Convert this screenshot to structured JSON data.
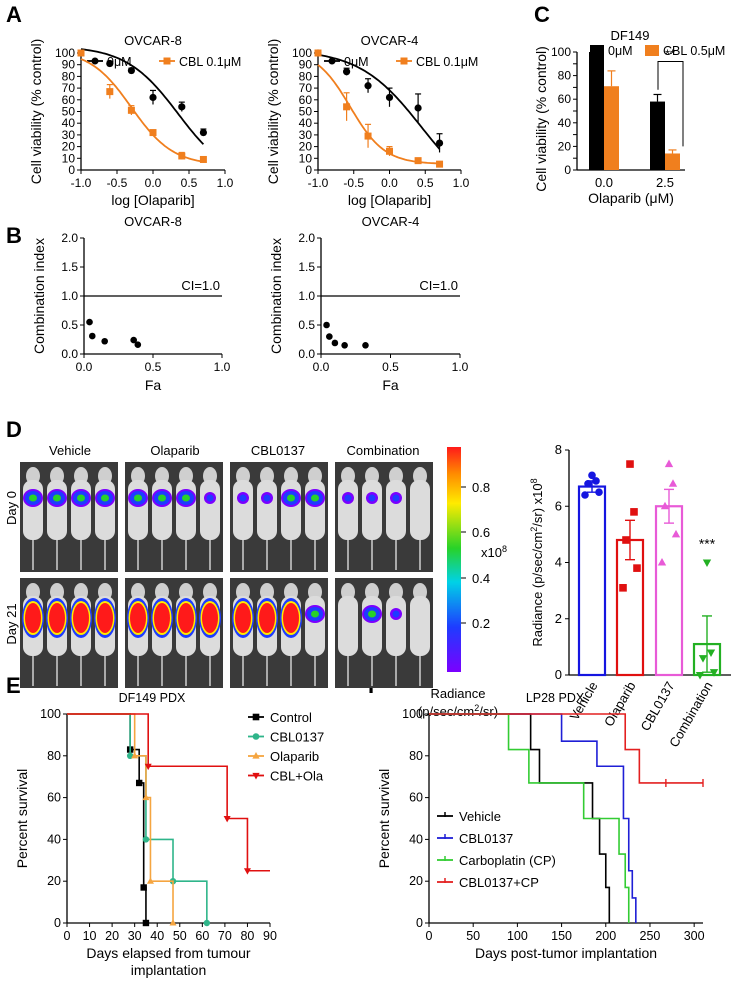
{
  "panel_letters": {
    "a": "A",
    "b": "B",
    "c": "C",
    "d": "D",
    "e": "E",
    "f": "F"
  },
  "colors": {
    "black": "#000000",
    "orange": "#f07f1e",
    "blue": "#1515e0",
    "red": "#e01010",
    "magenta": "#e85ad7",
    "green": "#23b023",
    "teal": "#2fb58a",
    "lightorange": "#f5a540",
    "f_green": "#33cc33",
    "f_blue": "#1f1fd6",
    "f_red": "#e32020"
  },
  "d_images": {
    "groups": [
      "Vehicle",
      "Olaparib",
      "CBL0137",
      "Combination"
    ],
    "rows": [
      "Day 0",
      "Day 21"
    ],
    "colorbar_ticks": [
      "0.8",
      "0.6",
      "0.4",
      "0.2"
    ],
    "colorbar_multiplier": "x10",
    "colorbar_exp": "8",
    "radiance_label": "Radiance",
    "radiance_units_pre": "(p/sec/cm",
    "radiance_units_sup": "2",
    "radiance_units_post": "/sr)"
  },
  "chart_data": [
    {
      "id": "A1",
      "type": "line",
      "title": "OVCAR-8",
      "xlabel": "log [Olaparib]",
      "ylabel": "Cell viability (% control)",
      "xlim": [
        -1.0,
        1.0
      ],
      "ylim": [
        0,
        100
      ],
      "xticks": [
        -1.0,
        -0.5,
        0.0,
        0.5,
        1.0
      ],
      "yticks": [
        0,
        10,
        20,
        30,
        40,
        50,
        60,
        70,
        80,
        90,
        100
      ],
      "series": [
        {
          "name": "0μM",
          "color": "#000000",
          "marker": "circle",
          "x": [
            -1.0,
            -0.6,
            -0.3,
            0.0,
            0.4,
            0.7
          ],
          "y": [
            100,
            91,
            85,
            62,
            54,
            32
          ],
          "err": [
            2,
            2,
            2,
            6,
            4,
            3
          ],
          "fit": {
            "top": 106,
            "bottom": -10,
            "ic50": 0.35,
            "hill": 1.2
          }
        },
        {
          "name": "CBL 0.1μM",
          "color": "#f07f1e",
          "marker": "square",
          "x": [
            -1.0,
            -0.6,
            -0.3,
            0.0,
            0.4,
            0.7
          ],
          "y": [
            100,
            67,
            51,
            32,
            12,
            9
          ],
          "err": [
            2,
            6,
            4,
            2,
            3,
            2
          ],
          "fit": {
            "top": 103,
            "bottom": 4,
            "ic50": -0.3,
            "hill": 1.5
          }
        }
      ]
    },
    {
      "id": "A2",
      "type": "line",
      "title": "OVCAR-4",
      "xlabel": "log [Olaparib]",
      "ylabel": "Cell viability (% control)",
      "xlim": [
        -1.0,
        1.0
      ],
      "ylim": [
        0,
        100
      ],
      "xticks": [
        -1.0,
        -0.5,
        0.0,
        0.5,
        1.0
      ],
      "yticks": [
        0,
        10,
        20,
        30,
        40,
        50,
        60,
        70,
        80,
        90,
        100
      ],
      "series": [
        {
          "name": "0μM",
          "color": "#000000",
          "marker": "circle",
          "x": [
            -1.0,
            -0.6,
            -0.3,
            0.0,
            0.4,
            0.7
          ],
          "y": [
            100,
            84,
            72,
            62,
            53,
            23
          ],
          "err": [
            2,
            3,
            6,
            8,
            12,
            8
          ],
          "fit": {
            "top": 103,
            "bottom": -30,
            "ic50": 0.45,
            "hill": 1.0
          }
        },
        {
          "name": "CBL 0.1μM",
          "color": "#f07f1e",
          "marker": "square",
          "x": [
            -1.0,
            -0.6,
            -0.3,
            0.0,
            0.4,
            0.7
          ],
          "y": [
            100,
            54,
            29,
            16,
            8,
            5
          ],
          "err": [
            2,
            12,
            10,
            4,
            2,
            2
          ],
          "fit": {
            "top": 103,
            "bottom": 5,
            "ic50": -0.55,
            "hill": 1.8
          }
        }
      ]
    },
    {
      "id": "C",
      "type": "bar",
      "title": "DF149",
      "xlabel": "Olaparib (μM)",
      "ylabel": "Cell viability (% control)",
      "categories": [
        "0.0",
        "2.5"
      ],
      "ylim": [
        0,
        100
      ],
      "yticks": [
        0,
        10,
        20,
        30,
        40,
        50,
        60,
        70,
        80,
        90,
        100
      ],
      "series": [
        {
          "name": "0μM",
          "color": "#000000",
          "values": [
            100,
            58
          ],
          "err": [
            0,
            6
          ]
        },
        {
          "name": "CBL 0.5μM",
          "color": "#f07f1e",
          "values": [
            71,
            14
          ],
          "err": [
            13,
            3
          ]
        }
      ],
      "annotation": "**"
    },
    {
      "id": "B1",
      "type": "scatter",
      "title": "OVCAR-8",
      "xlabel": "Fa",
      "ylabel": "Combination index",
      "xlim": [
        0,
        1.0
      ],
      "ylim": [
        0,
        2.0
      ],
      "xticks": [
        0.0,
        0.5,
        1.0
      ],
      "yticks": [
        0.0,
        0.5,
        1.0,
        1.5,
        2.0
      ],
      "reference_line": {
        "y": 1.0,
        "label": "CI=1.0"
      },
      "x": [
        0.04,
        0.06,
        0.15,
        0.36,
        0.39
      ],
      "y": [
        0.55,
        0.31,
        0.22,
        0.24,
        0.16
      ]
    },
    {
      "id": "B2",
      "type": "scatter",
      "title": "OVCAR-4",
      "xlabel": "Fa",
      "ylabel": "Combination index",
      "xlim": [
        0,
        1.0
      ],
      "ylim": [
        0,
        2.0
      ],
      "xticks": [
        0.0,
        0.5,
        1.0
      ],
      "yticks": [
        0.0,
        0.5,
        1.0,
        1.5,
        2.0
      ],
      "reference_line": {
        "y": 1.0,
        "label": "CI=1.0"
      },
      "x": [
        0.04,
        0.06,
        0.1,
        0.17,
        0.32
      ],
      "y": [
        0.5,
        0.3,
        0.19,
        0.15,
        0.15
      ]
    },
    {
      "id": "D",
      "type": "bar",
      "title": "",
      "xlabel": "",
      "ylabel_pre": "Radiance (p/sec/cm",
      "ylabel_sup1": "2",
      "ylabel_mid": "/sr) x10",
      "ylabel_sup2": "8",
      "categories": [
        "Vehicle",
        "Olaparib",
        "CBL0137",
        "Combination"
      ],
      "ylim": [
        0,
        8
      ],
      "yticks": [
        0,
        2,
        4,
        6,
        8
      ],
      "values": [
        6.7,
        4.8,
        6.0,
        1.1
      ],
      "err": [
        0.2,
        0.7,
        0.6,
        1.0
      ],
      "colors": [
        "#1515e0",
        "#e01010",
        "#e85ad7",
        "#23b023"
      ],
      "markers": [
        "circle",
        "square",
        "triangle",
        "triangle-down"
      ],
      "points": [
        [
          6.4,
          6.5,
          6.8,
          6.9,
          7.1
        ],
        [
          3.1,
          3.8,
          4.8,
          5.8,
          7.5
        ],
        [
          4.0,
          5.0,
          6.0,
          6.8,
          7.5
        ],
        [
          0.0,
          0.1,
          0.6,
          0.8,
          4.0
        ]
      ],
      "annotation": "***"
    },
    {
      "id": "E",
      "type": "line",
      "title": "DF149 PDX",
      "xlabel": "Days elapsed from tumour implantation",
      "ylabel": "Percent survival",
      "xlim": [
        0,
        90
      ],
      "ylim": [
        0,
        100
      ],
      "xticks": [
        0,
        10,
        20,
        30,
        40,
        50,
        60,
        70,
        80,
        90
      ],
      "yticks": [
        0,
        20,
        40,
        60,
        80,
        100
      ],
      "series": [
        {
          "name": "Control",
          "color": "#000000",
          "marker": "square",
          "steps": [
            [
              0,
              100
            ],
            [
              28,
              83
            ],
            [
              32,
              67
            ],
            [
              34,
              17
            ],
            [
              35,
              0
            ]
          ]
        },
        {
          "name": "CBL0137",
          "color": "#2fb58a",
          "marker": "circle",
          "steps": [
            [
              0,
              100
            ],
            [
              28,
              80
            ],
            [
              35,
              40
            ],
            [
              47,
              20
            ],
            [
              62,
              0
            ]
          ]
        },
        {
          "name": "Olaparib",
          "color": "#f5a540",
          "marker": "triangle",
          "steps": [
            [
              0,
              100
            ],
            [
              30,
              80
            ],
            [
              35,
              60
            ],
            [
              37,
              20
            ],
            [
              47,
              0
            ]
          ]
        },
        {
          "name": "CBL+Ola",
          "color": "#e01010",
          "marker": "triangle-down",
          "steps": [
            [
              0,
              100
            ],
            [
              36,
              75
            ],
            [
              71,
              50
            ],
            [
              80,
              25
            ]
          ],
          "end": 90
        }
      ]
    },
    {
      "id": "F",
      "type": "line",
      "title": "LP28 PDX",
      "xlabel": "Days post-tumor implantation",
      "ylabel": "Percent survival",
      "xlim": [
        0,
        310
      ],
      "ylim": [
        0,
        100
      ],
      "xticks": [
        0,
        50,
        100,
        150,
        200,
        250,
        300
      ],
      "yticks": [
        0,
        20,
        40,
        60,
        80,
        100
      ],
      "series": [
        {
          "name": "Vehicle",
          "color": "#000000",
          "steps": [
            [
              0,
              100
            ],
            [
              115,
              83
            ],
            [
              125,
              67
            ],
            [
              185,
              50
            ],
            [
              193,
              33
            ],
            [
              200,
              17
            ],
            [
              204,
              0
            ]
          ]
        },
        {
          "name": "CBL0137",
          "color": "#1f1fd6",
          "steps": [
            [
              0,
              100
            ],
            [
              150,
              87
            ],
            [
              190,
              75
            ],
            [
              220,
              50
            ],
            [
              226,
              25
            ],
            [
              230,
              12
            ],
            [
              234,
              0
            ]
          ]
        },
        {
          "name": "Carboplatin (CP)",
          "color": "#33cc33",
          "steps": [
            [
              0,
              100
            ],
            [
              90,
              83
            ],
            [
              113,
              67
            ],
            [
              175,
              50
            ],
            [
              215,
              33
            ],
            [
              222,
              17
            ],
            [
              226,
              0
            ]
          ]
        },
        {
          "name": "CBL0137+CP",
          "color": "#e32020",
          "steps": [
            [
              0,
              100
            ],
            [
              222,
              83
            ],
            [
              238,
              67
            ]
          ],
          "end": 310,
          "censor": [
            268,
            310
          ]
        }
      ]
    }
  ]
}
